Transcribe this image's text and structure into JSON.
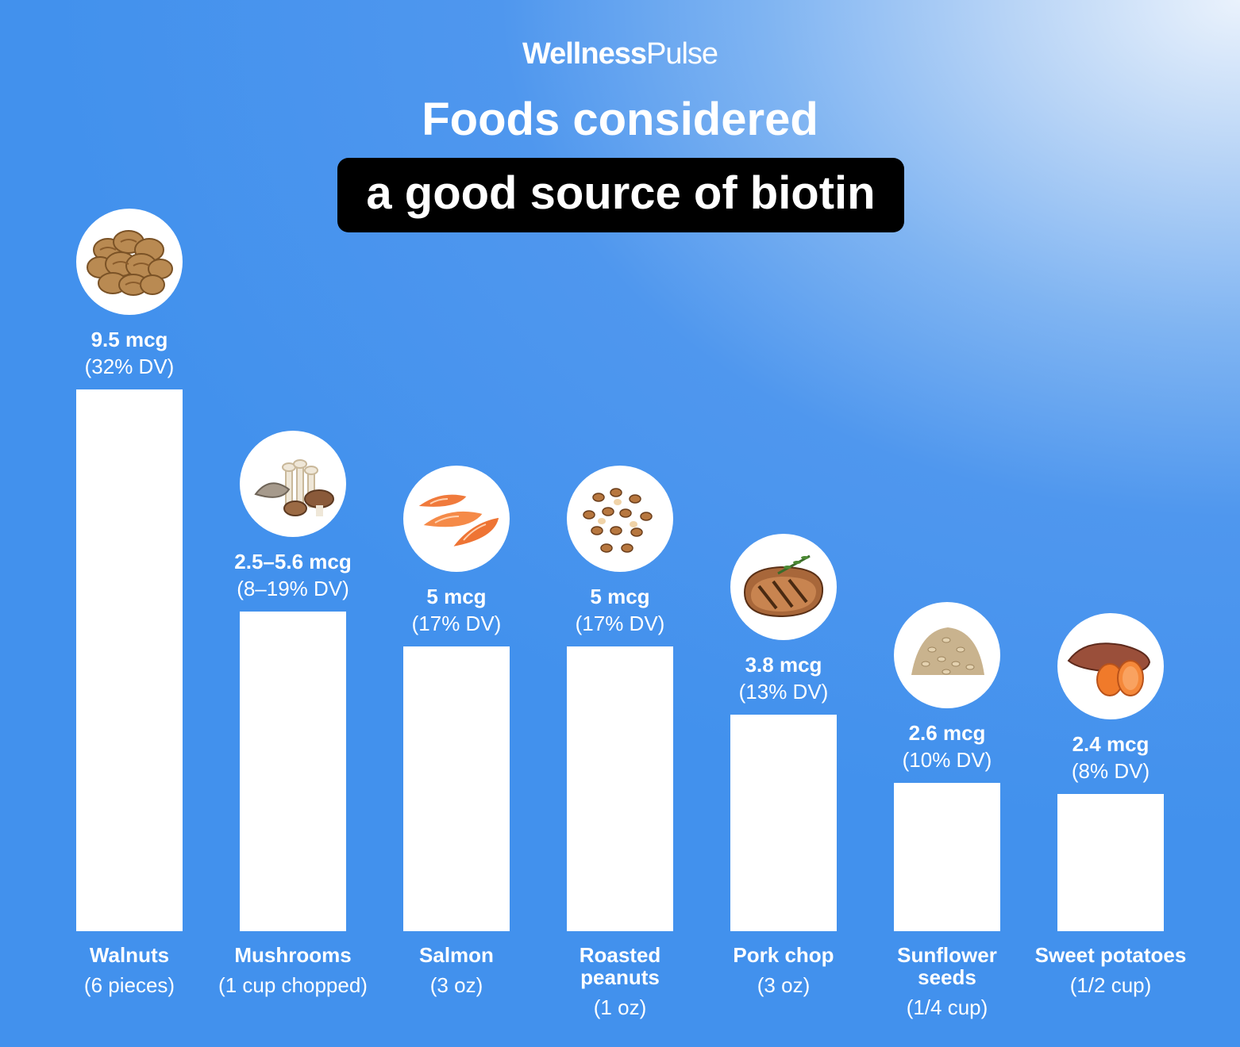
{
  "brand": {
    "part1": "Wellness",
    "part2": "Pulse"
  },
  "title": {
    "line1": "Foods considered",
    "line2": "a good source of biotin"
  },
  "colors": {
    "background": "#4291ed",
    "bar": "#ffffff",
    "title_box": "#000000",
    "text": "#ffffff"
  },
  "chart_data": {
    "type": "bar",
    "title": "Foods considered a good source of biotin",
    "unit": "mcg",
    "grid": false,
    "legend": "none",
    "ylim": [
      0,
      9.5
    ],
    "categories": [
      "Walnuts",
      "Mushrooms",
      "Salmon",
      "Roasted peanuts",
      "Pork chop",
      "Sunflower seeds",
      "Sweet potatoes"
    ],
    "items": [
      {
        "name": "Walnuts",
        "serving": "(6 pieces)",
        "value": 9.5,
        "amount_label": "9.5 mcg",
        "dv_label": "(32% DV)",
        "photo_icon": "walnuts-icon"
      },
      {
        "name": "Mushrooms",
        "serving": "(1 cup chopped)",
        "value": 5.6,
        "value_min": 2.5,
        "amount_label": "2.5–5.6 mcg",
        "dv_label": "(8–19% DV)",
        "photo_icon": "mushrooms-icon"
      },
      {
        "name": "Salmon",
        "serving": "(3 oz)",
        "value": 5,
        "amount_label": "5 mcg",
        "dv_label": "(17% DV)",
        "photo_icon": "salmon-icon"
      },
      {
        "name": "Roasted peanuts",
        "serving": "(1 oz)",
        "value": 5,
        "amount_label": "5 mcg",
        "dv_label": "(17% DV)",
        "photo_icon": "peanuts-icon"
      },
      {
        "name": "Pork chop",
        "serving": "(3 oz)",
        "value": 3.8,
        "amount_label": "3.8 mcg",
        "dv_label": "(13% DV)",
        "photo_icon": "pork-chop-icon"
      },
      {
        "name": "Sunflower seeds",
        "serving": "(1/4 cup)",
        "value": 2.6,
        "amount_label": "2.6 mcg",
        "dv_label": "(10% DV)",
        "photo_icon": "sunflower-seeds-icon"
      },
      {
        "name": "Sweet potatoes",
        "serving": "(1/2 cup)",
        "value": 2.4,
        "amount_label": "2.4 mcg",
        "dv_label": "(8% DV)",
        "photo_icon": "sweet-potato-icon"
      }
    ]
  }
}
